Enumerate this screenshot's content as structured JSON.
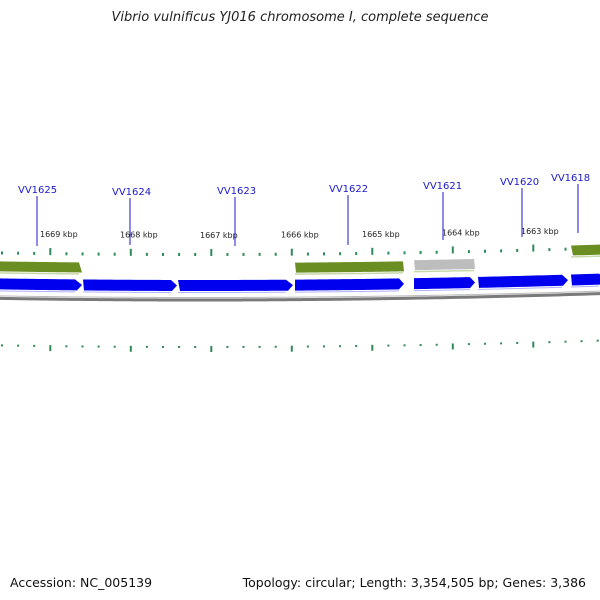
{
  "title": "Vibrio vulnificus YJ016 chromosome I, complete sequence",
  "footer": {
    "accession": "Accession: NC_005139",
    "summary": "Topology: circular; Length: 3,354,505 bp; Genes: 3,386"
  },
  "colors": {
    "backbone": "#7a7a7a",
    "cds_forward": "#0000ee",
    "rna_or_gene_band": "#6b8e23",
    "pseudo_band": "#bdbdbd",
    "tick": "#2e8b57",
    "label": "#1a1acc"
  },
  "gene_labels": [
    "VV1625",
    "VV1624",
    "VV1623",
    "VV1622",
    "VV1621",
    "VV1620",
    "VV1618"
  ],
  "kbp_labels": [
    "1669 kbp",
    "1668 kbp",
    "1667 kbp",
    "1666 kbp",
    "1665 kbp",
    "1664 kbp",
    "1663 kbp"
  ]
}
